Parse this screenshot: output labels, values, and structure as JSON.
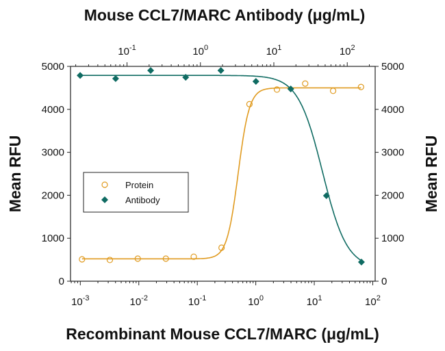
{
  "chart_data": {
    "type": "scatter",
    "top_xlabel": "Mouse CCL7/MARC Antibody (μg/mL)",
    "bottom_xlabel": "Recombinant Mouse CCL7/MARC (μg/mL)",
    "ylabel_left": "Mean RFU",
    "ylabel_right": "Mean RFU",
    "x_scale": "log",
    "bottom_xlim": [
      0.00068,
      110
    ],
    "top_xlim": [
      0.017,
      240
    ],
    "ylim": [
      0,
      5000
    ],
    "yticks": [
      0,
      1000,
      2000,
      3000,
      4000,
      5000
    ],
    "bottom_xticks": [
      {
        "base": "10",
        "exp": "-3",
        "v": 0.001
      },
      {
        "base": "10",
        "exp": "-2",
        "v": 0.01
      },
      {
        "base": "10",
        "exp": "-1",
        "v": 0.1
      },
      {
        "base": "10",
        "exp": "0",
        "v": 1
      },
      {
        "base": "10",
        "exp": "1",
        "v": 10
      },
      {
        "base": "10",
        "exp": "2",
        "v": 100
      }
    ],
    "top_xticks": [
      {
        "base": "10",
        "exp": "-1",
        "v": 0.1
      },
      {
        "base": "10",
        "exp": "0",
        "v": 1
      },
      {
        "base": "10",
        "exp": "1",
        "v": 10
      },
      {
        "base": "10",
        "exp": "2",
        "v": 100
      }
    ],
    "legend_placement": "center-left",
    "series": [
      {
        "name": "Protein",
        "axis": "bottom",
        "marker": "open-circle",
        "color": "#e09a1e",
        "x": [
          0.00107,
          0.0032,
          0.0096,
          0.029,
          0.087,
          0.26,
          0.78,
          2.3,
          7.0,
          21,
          63
        ],
        "y": [
          510,
          495,
          525,
          525,
          570,
          780,
          4120,
          4460,
          4600,
          4430,
          4520
        ],
        "fit": {
          "bottom": 520,
          "top": 4500,
          "ec50": 0.5,
          "hill": 4.5
        }
      },
      {
        "name": "Antibody",
        "axis": "top",
        "marker": "filled-diamond",
        "color": "#0f6b62",
        "x": [
          0.023,
          0.07,
          0.21,
          0.63,
          1.9,
          5.7,
          17,
          52,
          156
        ],
        "y": [
          4790,
          4715,
          4905,
          4745,
          4905,
          4650,
          4475,
          1990,
          445
        ],
        "fit": {
          "bottom": 300,
          "top": 4790,
          "ec50": 46,
          "hill": 2.6
        }
      }
    ]
  }
}
